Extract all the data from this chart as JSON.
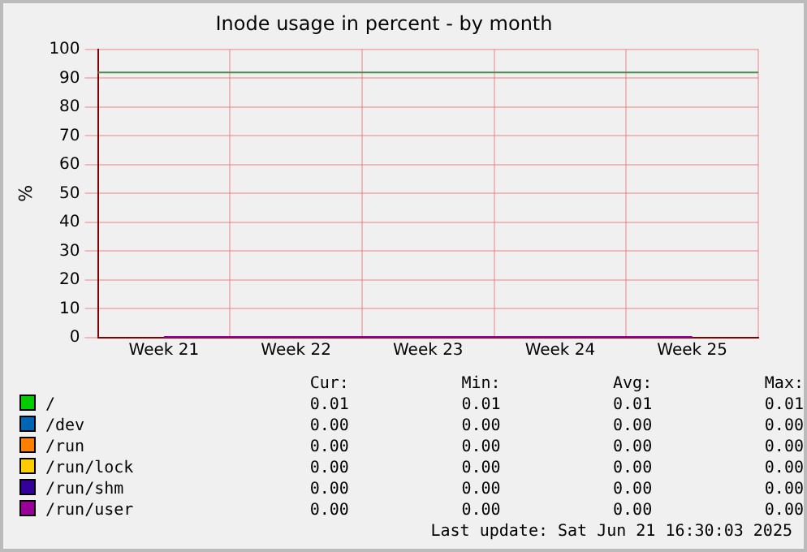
{
  "chart_data": {
    "type": "line",
    "title": "Inode usage in percent - by month",
    "ylabel": "%",
    "categories": [
      "Week 21",
      "Week 22",
      "Week 23",
      "Week 24",
      "Week 25"
    ],
    "ylim": [
      0,
      100
    ],
    "yticks": [
      0,
      10,
      20,
      30,
      40,
      50,
      60,
      70,
      80,
      90,
      100
    ],
    "series": [
      {
        "name": "/",
        "color": "#00cc00",
        "values": [
          null,
          null,
          null,
          null,
          null
        ]
      },
      {
        "name": "/dev",
        "color": "#0066b3",
        "values": [
          null,
          null,
          null,
          null,
          null
        ]
      },
      {
        "name": "/run",
        "color": "#ff8000",
        "values": [
          null,
          null,
          null,
          null,
          null
        ]
      },
      {
        "name": "/run/lock",
        "color": "#ffcc00",
        "values": [
          null,
          null,
          null,
          null,
          null
        ]
      },
      {
        "name": "/run/shm",
        "color": "#330099",
        "values": [
          null,
          null,
          null,
          null,
          null
        ]
      },
      {
        "name": "/run/user",
        "color": "#990099",
        "values": [
          0,
          0,
          0,
          0,
          0
        ]
      }
    ],
    "ref_lines": [
      {
        "axis": "y",
        "value": 92,
        "label": null,
        "color": "#4d8a4d"
      }
    ],
    "grid": true,
    "legend": "bottom",
    "marker": "none",
    "line_style": "solid",
    "annotations": [
      "Cur:",
      "Min:",
      "Avg:",
      "Max:",
      "0.01",
      "0.01",
      "0.01",
      "0.01",
      "0.00",
      "0.00",
      "0.00",
      "0.00",
      "0.00",
      "0.00",
      "0.00",
      "0.00",
      "0.00",
      "0.00",
      "0.00",
      "0.00",
      "0.00",
      "0.00",
      "0.00",
      "0.00",
      "0.00",
      "0.00",
      "0.00",
      "0.00",
      "Last update: Sat Jun 21 16:30:03 2025"
    ]
  }
}
